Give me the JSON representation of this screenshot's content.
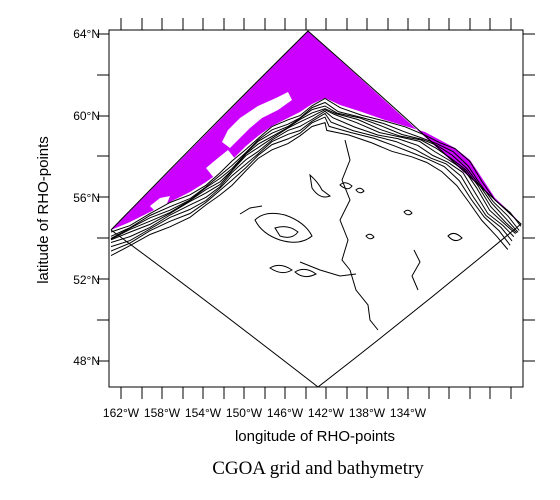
{
  "figure": {
    "title": "CGOA grid and bathymetry",
    "xlabel": "longitude of RHO-points",
    "ylabel": "latitude of RHO-points"
  },
  "axes": {
    "x_tick_labels": [
      "162°W",
      "158°W",
      "154°W",
      "150°W",
      "146°W",
      "142°W",
      "138°W",
      "134°W"
    ],
    "y_tick_labels": [
      "64°N",
      "60°N",
      "56°N",
      "52°N",
      "48°N"
    ]
  },
  "map": {
    "land_color": "#cc00ff",
    "contour_color": "#000000",
    "background_color": "#ffffff"
  }
}
